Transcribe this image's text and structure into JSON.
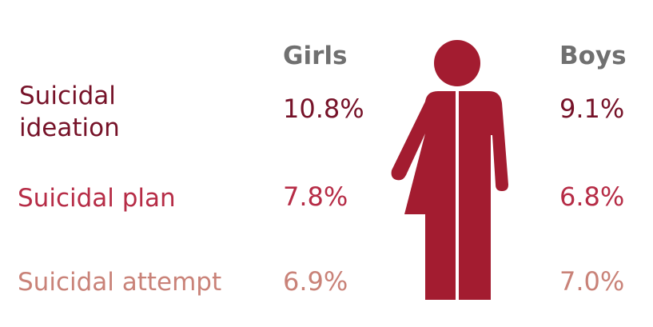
{
  "chart_data": {
    "type": "table",
    "columns": [
      "Girls",
      "Boys"
    ],
    "rows": [
      {
        "label": "Suicidal\nideation",
        "girls": "10.8%",
        "boys": "9.1%",
        "color": "#761228"
      },
      {
        "label": "Suicidal plan",
        "girls": "7.8%",
        "boys": "6.8%",
        "color": "#b62c46"
      },
      {
        "label": "Suicidal attempt",
        "girls": "6.9%",
        "boys": "7.0%",
        "color": "#c98278"
      }
    ],
    "values": {
      "girls": [
        10.8,
        7.8,
        6.9
      ],
      "boys": [
        9.1,
        6.8,
        7.0
      ]
    }
  },
  "icon": {
    "name": "girl-boy-figure-icon",
    "color": "#a31c30"
  }
}
